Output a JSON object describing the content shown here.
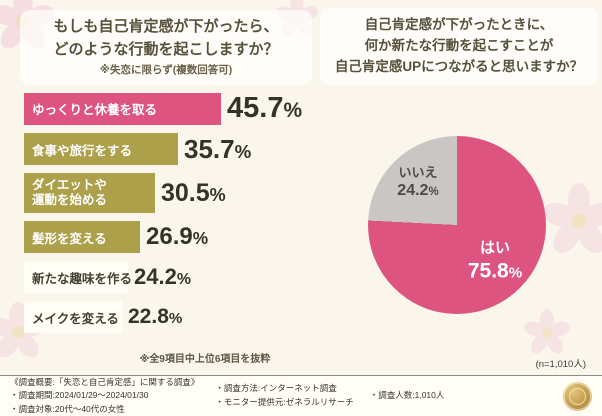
{
  "ui": {
    "percent_sign": "%"
  },
  "colors": {
    "pink": "#dd5480",
    "olive": "#aca04a",
    "gray": "#c9c6c3",
    "bar_white": "#fffdf6"
  },
  "left_chart": {
    "title_lines": [
      "もしも自己肯定感が下がったら、",
      "どのような行動を起こしますか？"
    ],
    "note": "※失恋に限らず(複数回答可)",
    "bars": [
      {
        "label": "ゆっくりと休養を取る",
        "value": "45.7"
      },
      {
        "label": "食事や旅行をする",
        "value": "35.7"
      },
      {
        "label_line1": "ダイエットや",
        "label_line2": "運動を始める",
        "value": "30.5"
      },
      {
        "label": "髪形を変える",
        "value": "26.9"
      },
      {
        "label": "新たな趣味を作る",
        "value": "24.2"
      },
      {
        "label": "メイクを変える",
        "value": "22.8"
      }
    ],
    "footnote": "※全9項目中上位6項目を抜粋"
  },
  "right_chart": {
    "title_lines": [
      "自己肯定感が下がったときに、",
      "何か新たな行動を起こすことが",
      "自己肯定感UPにつながると思いますか？"
    ],
    "yes_label": "はい",
    "yes_value": "75.8",
    "no_label": "いいえ",
    "no_value": "24.2",
    "n_label": "(n=1,010人)"
  },
  "footer": {
    "summary": "《調査概要:「失恋と自己肯定感」に関する調査》",
    "period": "・調査期間:2024/01/29～2024/01/30",
    "subject": "・調査対象:20代～40代の女性",
    "method": "・調査方法:インターネット調査",
    "monitor": "・モニター提供元:ゼネラルリサーチ",
    "count": "・調査人数:1,010人"
  },
  "chart_data": [
    {
      "type": "bar",
      "title": "もしも自己肯定感が下がったら、どのような行動を起こしますか？",
      "subtitle": "※失恋に限らず(複数回答可)",
      "categories": [
        "ゆっくりと休養を取る",
        "食事や旅行をする",
        "ダイエットや運動を始める",
        "髪形を変える",
        "新たな趣味を作る",
        "メイクを変える"
      ],
      "values": [
        45.7,
        35.7,
        30.5,
        26.9,
        24.2,
        22.8
      ],
      "unit": "%",
      "xlabel": "",
      "ylabel": "",
      "xlim": [
        0,
        50
      ],
      "orientation": "horizontal",
      "grid": false,
      "note": "※全9項目中上位6項目を抜粋",
      "bar_colors": [
        "#dd5480",
        "#aca04a",
        "#aca04a",
        "#aca04a",
        "#fffdf6",
        "#fffdf6"
      ]
    },
    {
      "type": "pie",
      "title": "自己肯定感が下がったときに、何か新たな行動を起こすことが自己肯定感UPにつながると思いますか？",
      "categories": [
        "はい",
        "いいえ"
      ],
      "values": [
        75.8,
        24.2
      ],
      "colors": [
        "#dd5480",
        "#c9c6c3"
      ],
      "n": "(n=1,010人)",
      "legend_position": "inside"
    }
  ]
}
